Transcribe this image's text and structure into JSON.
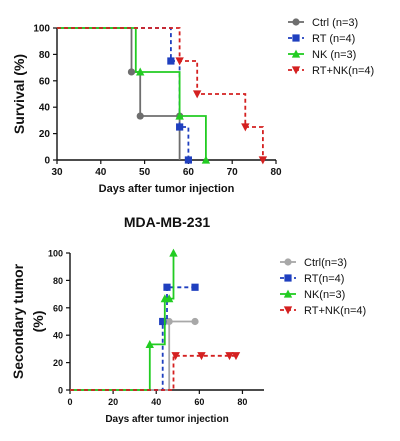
{
  "chart_data": [
    {
      "type": "line",
      "step": true,
      "title": "",
      "xlabel": "Days after tumor injection",
      "ylabel": "Survival (%)",
      "xlim": [
        30,
        80
      ],
      "ylim": [
        0,
        100
      ],
      "xticks": [
        "30",
        "40",
        "50",
        "60",
        "70",
        "80"
      ],
      "yticks": [
        "0",
        "20",
        "40",
        "60",
        "80",
        "100"
      ],
      "grid": false,
      "legend_position": "right",
      "series": [
        {
          "name": "Ctrl (n=3)",
          "color": "#6e6e6e",
          "line_style": "solid",
          "marker": "circle",
          "x": [
            30,
            47,
            47,
            49,
            49,
            58,
            58
          ],
          "y": [
            100,
            100,
            66.7,
            66.7,
            33.3,
            33.3,
            0
          ],
          "marker_x": [
            47,
            49,
            58
          ],
          "marker_y": [
            66.7,
            33.3,
            33.3
          ]
        },
        {
          "name": "RT (n=4)",
          "color": "#1f3fbf",
          "line_style": "dashed",
          "marker": "square",
          "x": [
            30,
            56,
            56,
            58,
            58,
            60,
            60
          ],
          "y": [
            100,
            100,
            75,
            75,
            25,
            25,
            0
          ],
          "marker_x": [
            56,
            58,
            60
          ],
          "marker_y": [
            75,
            25,
            0
          ]
        },
        {
          "name": "NK (n=3)",
          "color": "#22cc22",
          "line_style": "solid",
          "marker": "triangle-up",
          "x": [
            30,
            48,
            48,
            58,
            58,
            64,
            64
          ],
          "y": [
            100,
            100,
            66.7,
            66.7,
            33.3,
            33.3,
            0
          ],
          "marker_x": [
            49,
            58,
            64
          ],
          "marker_y": [
            66.7,
            33.3,
            0
          ]
        },
        {
          "name": "RT+NK(n=4)",
          "color": "#d42020",
          "line_style": "dashed",
          "marker": "triangle-down",
          "x": [
            30,
            58,
            58,
            62,
            62,
            73,
            73,
            77,
            77
          ],
          "y": [
            100,
            100,
            75,
            75,
            50,
            50,
            25,
            25,
            0
          ],
          "marker_x": [
            58,
            62,
            73,
            77
          ],
          "marker_y": [
            75,
            50,
            25,
            0
          ]
        }
      ]
    },
    {
      "type": "line",
      "step": true,
      "title": "MDA-MB-231",
      "xlabel": "Days after tumor injection",
      "ylabel": "Secondary tumor (%)",
      "ylabel_lines": [
        "Secondary tumor",
        "(%)"
      ],
      "xlim": [
        0,
        90
      ],
      "ylim": [
        0,
        100
      ],
      "xticks": [
        "0",
        "20",
        "40",
        "60",
        "80"
      ],
      "yticks": [
        "0",
        "20",
        "40",
        "60",
        "80",
        "100"
      ],
      "grid": false,
      "legend_position": "right",
      "series": [
        {
          "name": "Ctrl(n=3)",
          "color": "#a8a8a8",
          "line_style": "solid",
          "marker": "circle",
          "x": [
            0,
            46,
            46,
            58
          ],
          "y": [
            0,
            0,
            50,
            50
          ],
          "marker_x": [
            46,
            58
          ],
          "marker_y": [
            50,
            50
          ]
        },
        {
          "name": "RT(n=4)",
          "color": "#1f3fbf",
          "line_style": "dashed",
          "marker": "square",
          "x": [
            0,
            43,
            43,
            45,
            45,
            58
          ],
          "y": [
            0,
            0,
            50,
            50,
            75,
            75
          ],
          "marker_x": [
            43,
            45,
            58
          ],
          "marker_y": [
            50,
            75,
            75
          ]
        },
        {
          "name": "NK(n=3)",
          "color": "#22cc22",
          "line_style": "solid",
          "marker": "triangle-up",
          "x": [
            0,
            37,
            37,
            44,
            44,
            46,
            46,
            48,
            48
          ],
          "y": [
            0,
            0,
            33.3,
            33.3,
            66.7,
            66.7,
            66.7,
            66.7,
            100
          ],
          "marker_x": [
            37,
            44,
            46,
            48
          ],
          "marker_y": [
            33.3,
            66.7,
            66.7,
            100
          ]
        },
        {
          "name": "RT+NK(n=4)",
          "color": "#d42020",
          "line_style": "dashed",
          "marker": "triangle-down",
          "x": [
            0,
            48,
            48,
            77
          ],
          "y": [
            0,
            0,
            25,
            25
          ],
          "marker_x": [
            49,
            61,
            74,
            77
          ],
          "marker_y": [
            25,
            25,
            25,
            25
          ]
        }
      ]
    }
  ]
}
